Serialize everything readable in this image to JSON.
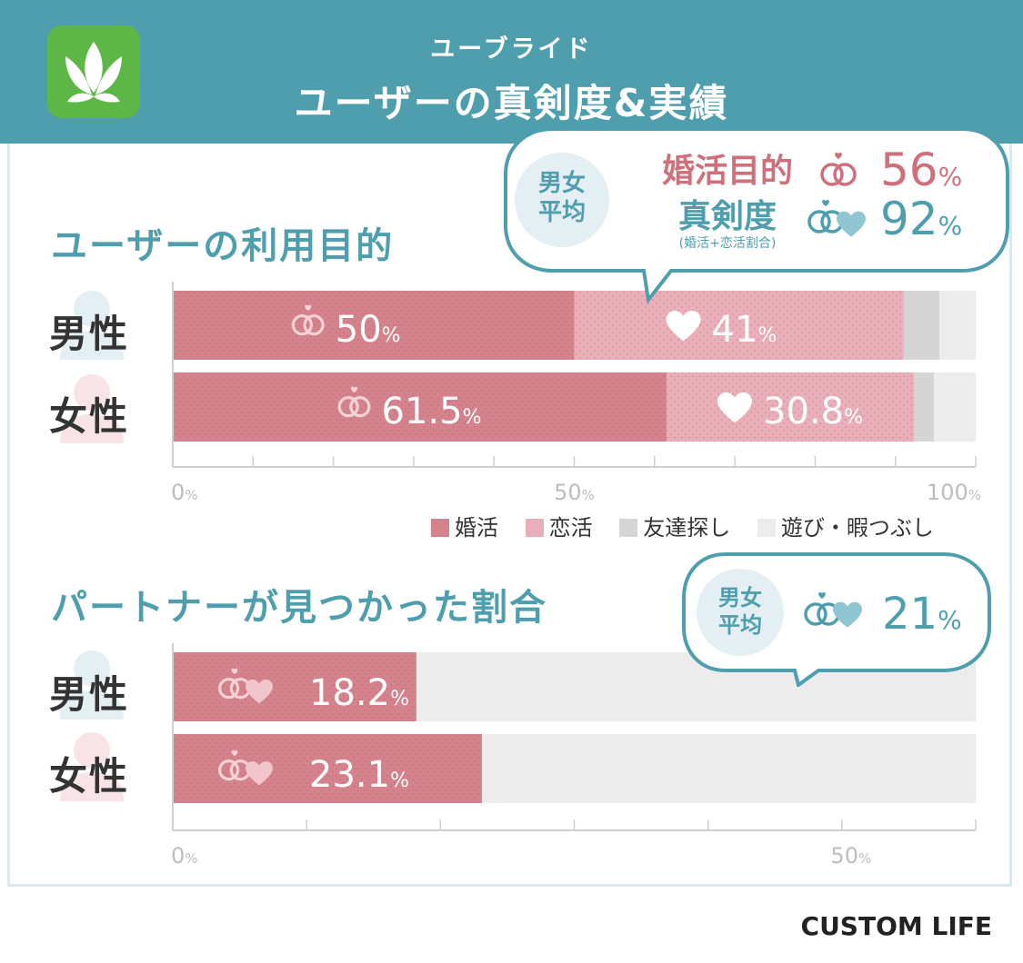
{
  "header": {
    "subtitle": "ユーブライド",
    "title": "ユーザーの真剣度&実績"
  },
  "colors": {
    "header_bg": "#4f9eae",
    "konkatsu": "#d4838c",
    "renkatsu": "#eab0b9",
    "tomodachi": "#d5d5d5",
    "asobi": "#ececec",
    "accent_teal": "#4f9eae",
    "accent_pink": "#cf6f7b"
  },
  "purpose": {
    "title": "ユーザーの利用目的",
    "rows": [
      {
        "label": "男性",
        "konkatsu": "50",
        "renkatsu": "41"
      },
      {
        "label": "女性",
        "konkatsu": "61.5",
        "renkatsu": "30.8"
      }
    ],
    "ticks": [
      "0",
      "50",
      "100"
    ],
    "legend": [
      "婚活",
      "恋活",
      "友達探し",
      "遊び・暇つぶし"
    ],
    "bubble": {
      "avg": "男女\n平均",
      "konkatsu_label": "婚活目的",
      "konkatsu_value": "56",
      "serious_label": "真剣度",
      "serious_note": "(婚活+恋活割合)",
      "serious_value": "92"
    }
  },
  "partner": {
    "title": "パートナーが見つかった割合",
    "rows": [
      {
        "label": "男性",
        "value": "18.2"
      },
      {
        "label": "女性",
        "value": "23.1"
      }
    ],
    "ticks": [
      "0",
      "50"
    ],
    "bubble": {
      "avg": "男女\n平均",
      "value": "21"
    }
  },
  "pct": "%",
  "footer": "CUSTOM LIFE",
  "chart_data": [
    {
      "type": "bar",
      "orientation": "horizontal",
      "stacked": true,
      "title": "ユーザーの利用目的",
      "categories": [
        "男性",
        "女性"
      ],
      "series": [
        {
          "name": "婚活",
          "values": [
            50,
            61.5
          ]
        },
        {
          "name": "恋活",
          "values": [
            41,
            30.8
          ]
        },
        {
          "name": "友達探し",
          "values": [
            4.5,
            2.5
          ]
        },
        {
          "name": "遊び・暇つぶし",
          "values": [
            4.5,
            5.2
          ]
        }
      ],
      "xlim": [
        0,
        100
      ],
      "xticks": [
        0,
        50,
        100
      ],
      "legend": "bottom-right"
    },
    {
      "type": "bar",
      "orientation": "horizontal",
      "title": "パートナーが見つかった割合",
      "categories": [
        "男性",
        "女性"
      ],
      "values": [
        18.2,
        23.1
      ],
      "xlim": [
        0,
        60
      ],
      "xticks": [
        0,
        50
      ]
    }
  ]
}
